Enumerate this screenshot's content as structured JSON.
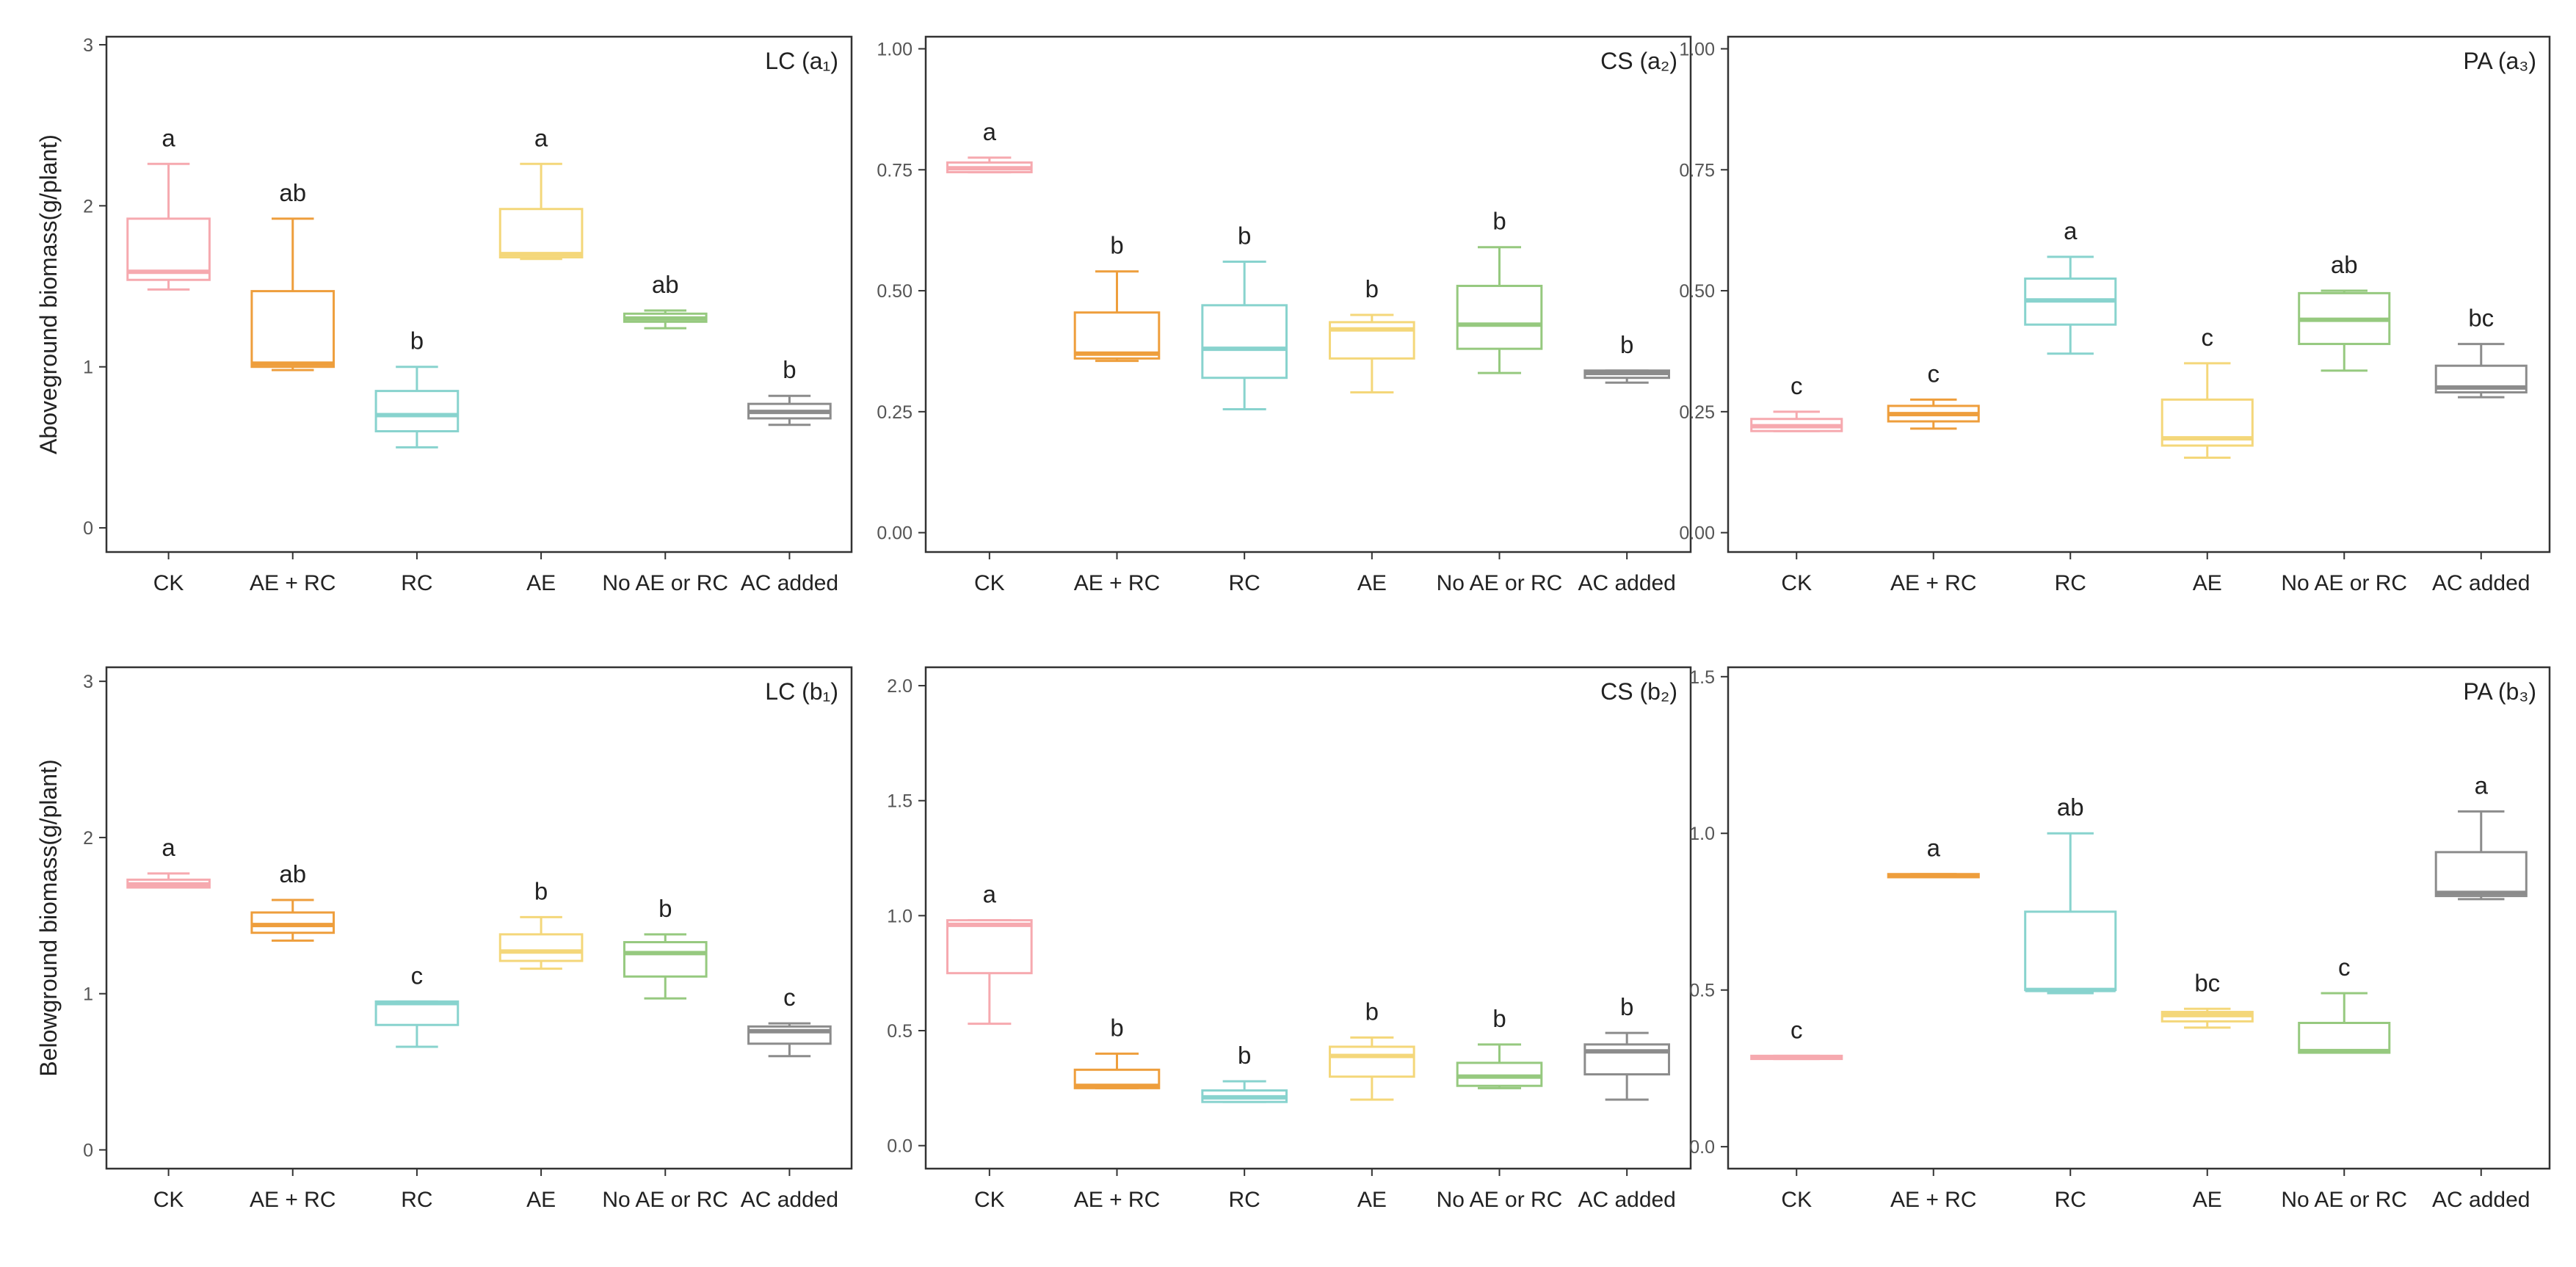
{
  "figure": {
    "categories": [
      "CK",
      "AE + RC",
      "RC",
      "AE",
      "No AE or RC",
      "AC added"
    ],
    "colors": [
      "#F6A9AF",
      "#EE9E3C",
      "#88D3CE",
      "#F4D77A",
      "#96C97F",
      "#8C8C8C"
    ]
  },
  "chart_data": [
    {
      "type": "box",
      "panel": "a1",
      "title": "LC (a₁)",
      "ylabel": "Aboveground biomass(g/plant)",
      "ylim": [
        -0.15,
        3.05
      ],
      "yticks": [
        0,
        1,
        2,
        3
      ],
      "ytick_labels": [
        "0",
        "1",
        "2",
        "3"
      ],
      "boxes": [
        {
          "category": "CK",
          "min": 1.48,
          "q1": 1.54,
          "median": 1.59,
          "q3": 1.92,
          "max": 2.26,
          "letter": "a"
        },
        {
          "category": "AE + RC",
          "min": 0.98,
          "q1": 1.0,
          "median": 1.02,
          "q3": 1.47,
          "max": 1.92,
          "letter": "ab"
        },
        {
          "category": "RC",
          "min": 0.5,
          "q1": 0.6,
          "median": 0.7,
          "q3": 0.85,
          "max": 1.0,
          "letter": "b"
        },
        {
          "category": "AE",
          "min": 1.67,
          "q1": 1.68,
          "median": 1.7,
          "q3": 1.98,
          "max": 2.26,
          "letter": "a"
        },
        {
          "category": "No AE or RC",
          "min": 1.24,
          "q1": 1.28,
          "median": 1.3,
          "q3": 1.33,
          "max": 1.35,
          "letter": "ab"
        },
        {
          "category": "AC added",
          "min": 0.64,
          "q1": 0.68,
          "median": 0.72,
          "q3": 0.77,
          "max": 0.82,
          "letter": "b"
        }
      ]
    },
    {
      "type": "box",
      "panel": "a2",
      "title": "CS (a₂)",
      "ylabel": "",
      "ylim": [
        -0.04,
        1.025
      ],
      "yticks": [
        0,
        0.25,
        0.5,
        0.75,
        1.0
      ],
      "ytick_labels": [
        "0.00",
        "0.25",
        "0.50",
        "0.75",
        "1.00"
      ],
      "boxes": [
        {
          "category": "CK",
          "min": 0.745,
          "q1": 0.745,
          "median": 0.753,
          "q3": 0.765,
          "max": 0.775,
          "letter": "a"
        },
        {
          "category": "AE + RC",
          "min": 0.355,
          "q1": 0.36,
          "median": 0.37,
          "q3": 0.455,
          "max": 0.54,
          "letter": "b"
        },
        {
          "category": "RC",
          "min": 0.255,
          "q1": 0.32,
          "median": 0.38,
          "q3": 0.47,
          "max": 0.56,
          "letter": "b"
        },
        {
          "category": "AE",
          "min": 0.29,
          "q1": 0.36,
          "median": 0.42,
          "q3": 0.435,
          "max": 0.45,
          "letter": "b"
        },
        {
          "category": "No AE or RC",
          "min": 0.33,
          "q1": 0.38,
          "median": 0.43,
          "q3": 0.51,
          "max": 0.59,
          "letter": "b"
        },
        {
          "category": "AC added",
          "min": 0.31,
          "q1": 0.32,
          "median": 0.33,
          "q3": 0.335,
          "max": 0.335,
          "letter": "b"
        }
      ]
    },
    {
      "type": "box",
      "panel": "a3",
      "title": "PA (a₃)",
      "ylabel": "",
      "ylim": [
        -0.04,
        1.025
      ],
      "yticks": [
        0,
        0.25,
        0.5,
        0.75,
        1.0
      ],
      "ytick_labels": [
        "0.00",
        "0.25",
        "0.50",
        "0.75",
        "1.00"
      ],
      "boxes": [
        {
          "category": "CK",
          "min": 0.21,
          "q1": 0.21,
          "median": 0.22,
          "q3": 0.235,
          "max": 0.25,
          "letter": "c"
        },
        {
          "category": "AE + RC",
          "min": 0.215,
          "q1": 0.23,
          "median": 0.245,
          "q3": 0.262,
          "max": 0.275,
          "letter": "c"
        },
        {
          "category": "RC",
          "min": 0.37,
          "q1": 0.43,
          "median": 0.48,
          "q3": 0.525,
          "max": 0.57,
          "letter": "a"
        },
        {
          "category": "AE",
          "min": 0.155,
          "q1": 0.18,
          "median": 0.195,
          "q3": 0.275,
          "max": 0.35,
          "letter": "c"
        },
        {
          "category": "No AE or RC",
          "min": 0.335,
          "q1": 0.39,
          "median": 0.44,
          "q3": 0.495,
          "max": 0.5,
          "letter": "ab"
        },
        {
          "category": "AC added",
          "min": 0.28,
          "q1": 0.29,
          "median": 0.3,
          "q3": 0.345,
          "max": 0.39,
          "letter": "bc"
        }
      ]
    },
    {
      "type": "box",
      "panel": "b1",
      "title": "LC (b₁)",
      "ylabel": "Belowground biomass(g/plant)",
      "ylim": [
        -0.12,
        3.09
      ],
      "yticks": [
        0,
        1,
        2,
        3
      ],
      "ytick_labels": [
        "0",
        "1",
        "2",
        "3"
      ],
      "boxes": [
        {
          "category": "CK",
          "min": 1.68,
          "q1": 1.68,
          "median": 1.7,
          "q3": 1.73,
          "max": 1.77,
          "letter": "a"
        },
        {
          "category": "AE + RC",
          "min": 1.34,
          "q1": 1.39,
          "median": 1.44,
          "q3": 1.52,
          "max": 1.6,
          "letter": "ab"
        },
        {
          "category": "RC",
          "min": 0.66,
          "q1": 0.8,
          "median": 0.94,
          "q3": 0.95,
          "max": 0.95,
          "letter": "c"
        },
        {
          "category": "AE",
          "min": 1.16,
          "q1": 1.21,
          "median": 1.27,
          "q3": 1.38,
          "max": 1.49,
          "letter": "b"
        },
        {
          "category": "No AE or RC",
          "min": 0.97,
          "q1": 1.11,
          "median": 1.26,
          "q3": 1.33,
          "max": 1.38,
          "letter": "b"
        },
        {
          "category": "AC added",
          "min": 0.6,
          "q1": 0.68,
          "median": 0.76,
          "q3": 0.79,
          "max": 0.81,
          "letter": "c"
        }
      ]
    },
    {
      "type": "box",
      "panel": "b2",
      "title": "CS (b₂)",
      "ylabel": "",
      "ylim": [
        -0.1,
        2.08
      ],
      "yticks": [
        0,
        0.5,
        1.0,
        1.5,
        2.0
      ],
      "ytick_labels": [
        "0.0",
        "0.5",
        "1.0",
        "1.5",
        "2.0"
      ],
      "boxes": [
        {
          "category": "CK",
          "min": 0.53,
          "q1": 0.75,
          "median": 0.96,
          "q3": 0.98,
          "max": 0.98,
          "letter": "a"
        },
        {
          "category": "AE + RC",
          "min": 0.25,
          "q1": 0.25,
          "median": 0.26,
          "q3": 0.33,
          "max": 0.4,
          "letter": "b"
        },
        {
          "category": "RC",
          "min": 0.19,
          "q1": 0.19,
          "median": 0.21,
          "q3": 0.24,
          "max": 0.28,
          "letter": "b"
        },
        {
          "category": "AE",
          "min": 0.2,
          "q1": 0.3,
          "median": 0.39,
          "q3": 0.43,
          "max": 0.47,
          "letter": "b"
        },
        {
          "category": "No AE or RC",
          "min": 0.25,
          "q1": 0.26,
          "median": 0.3,
          "q3": 0.36,
          "max": 0.44,
          "letter": "b"
        },
        {
          "category": "AC added",
          "min": 0.2,
          "q1": 0.31,
          "median": 0.41,
          "q3": 0.44,
          "max": 0.49,
          "letter": "b"
        }
      ]
    },
    {
      "type": "box",
      "panel": "b3",
      "title": "PA (b₃)",
      "ylabel": "",
      "ylim": [
        -0.07,
        1.53
      ],
      "yticks": [
        0,
        0.5,
        1.0,
        1.5
      ],
      "ytick_labels": [
        "0.0",
        "0.5",
        "1.0",
        "1.5"
      ],
      "boxes": [
        {
          "category": "CK",
          "min": 0.28,
          "q1": 0.28,
          "median": 0.285,
          "q3": 0.29,
          "max": 0.29,
          "letter": "c"
        },
        {
          "category": "AE + RC",
          "min": 0.86,
          "q1": 0.86,
          "median": 0.865,
          "q3": 0.87,
          "max": 0.87,
          "letter": "a"
        },
        {
          "category": "RC",
          "min": 0.49,
          "q1": 0.5,
          "median": 0.5,
          "q3": 0.75,
          "max": 1.0,
          "letter": "ab"
        },
        {
          "category": "AE",
          "min": 0.38,
          "q1": 0.4,
          "median": 0.42,
          "q3": 0.43,
          "max": 0.44,
          "letter": "bc"
        },
        {
          "category": "No AE or RC",
          "min": 0.3,
          "q1": 0.3,
          "median": 0.305,
          "q3": 0.395,
          "max": 0.49,
          "letter": "c"
        },
        {
          "category": "AC added",
          "min": 0.79,
          "q1": 0.8,
          "median": 0.81,
          "q3": 0.94,
          "max": 1.07,
          "letter": "a"
        }
      ]
    }
  ]
}
